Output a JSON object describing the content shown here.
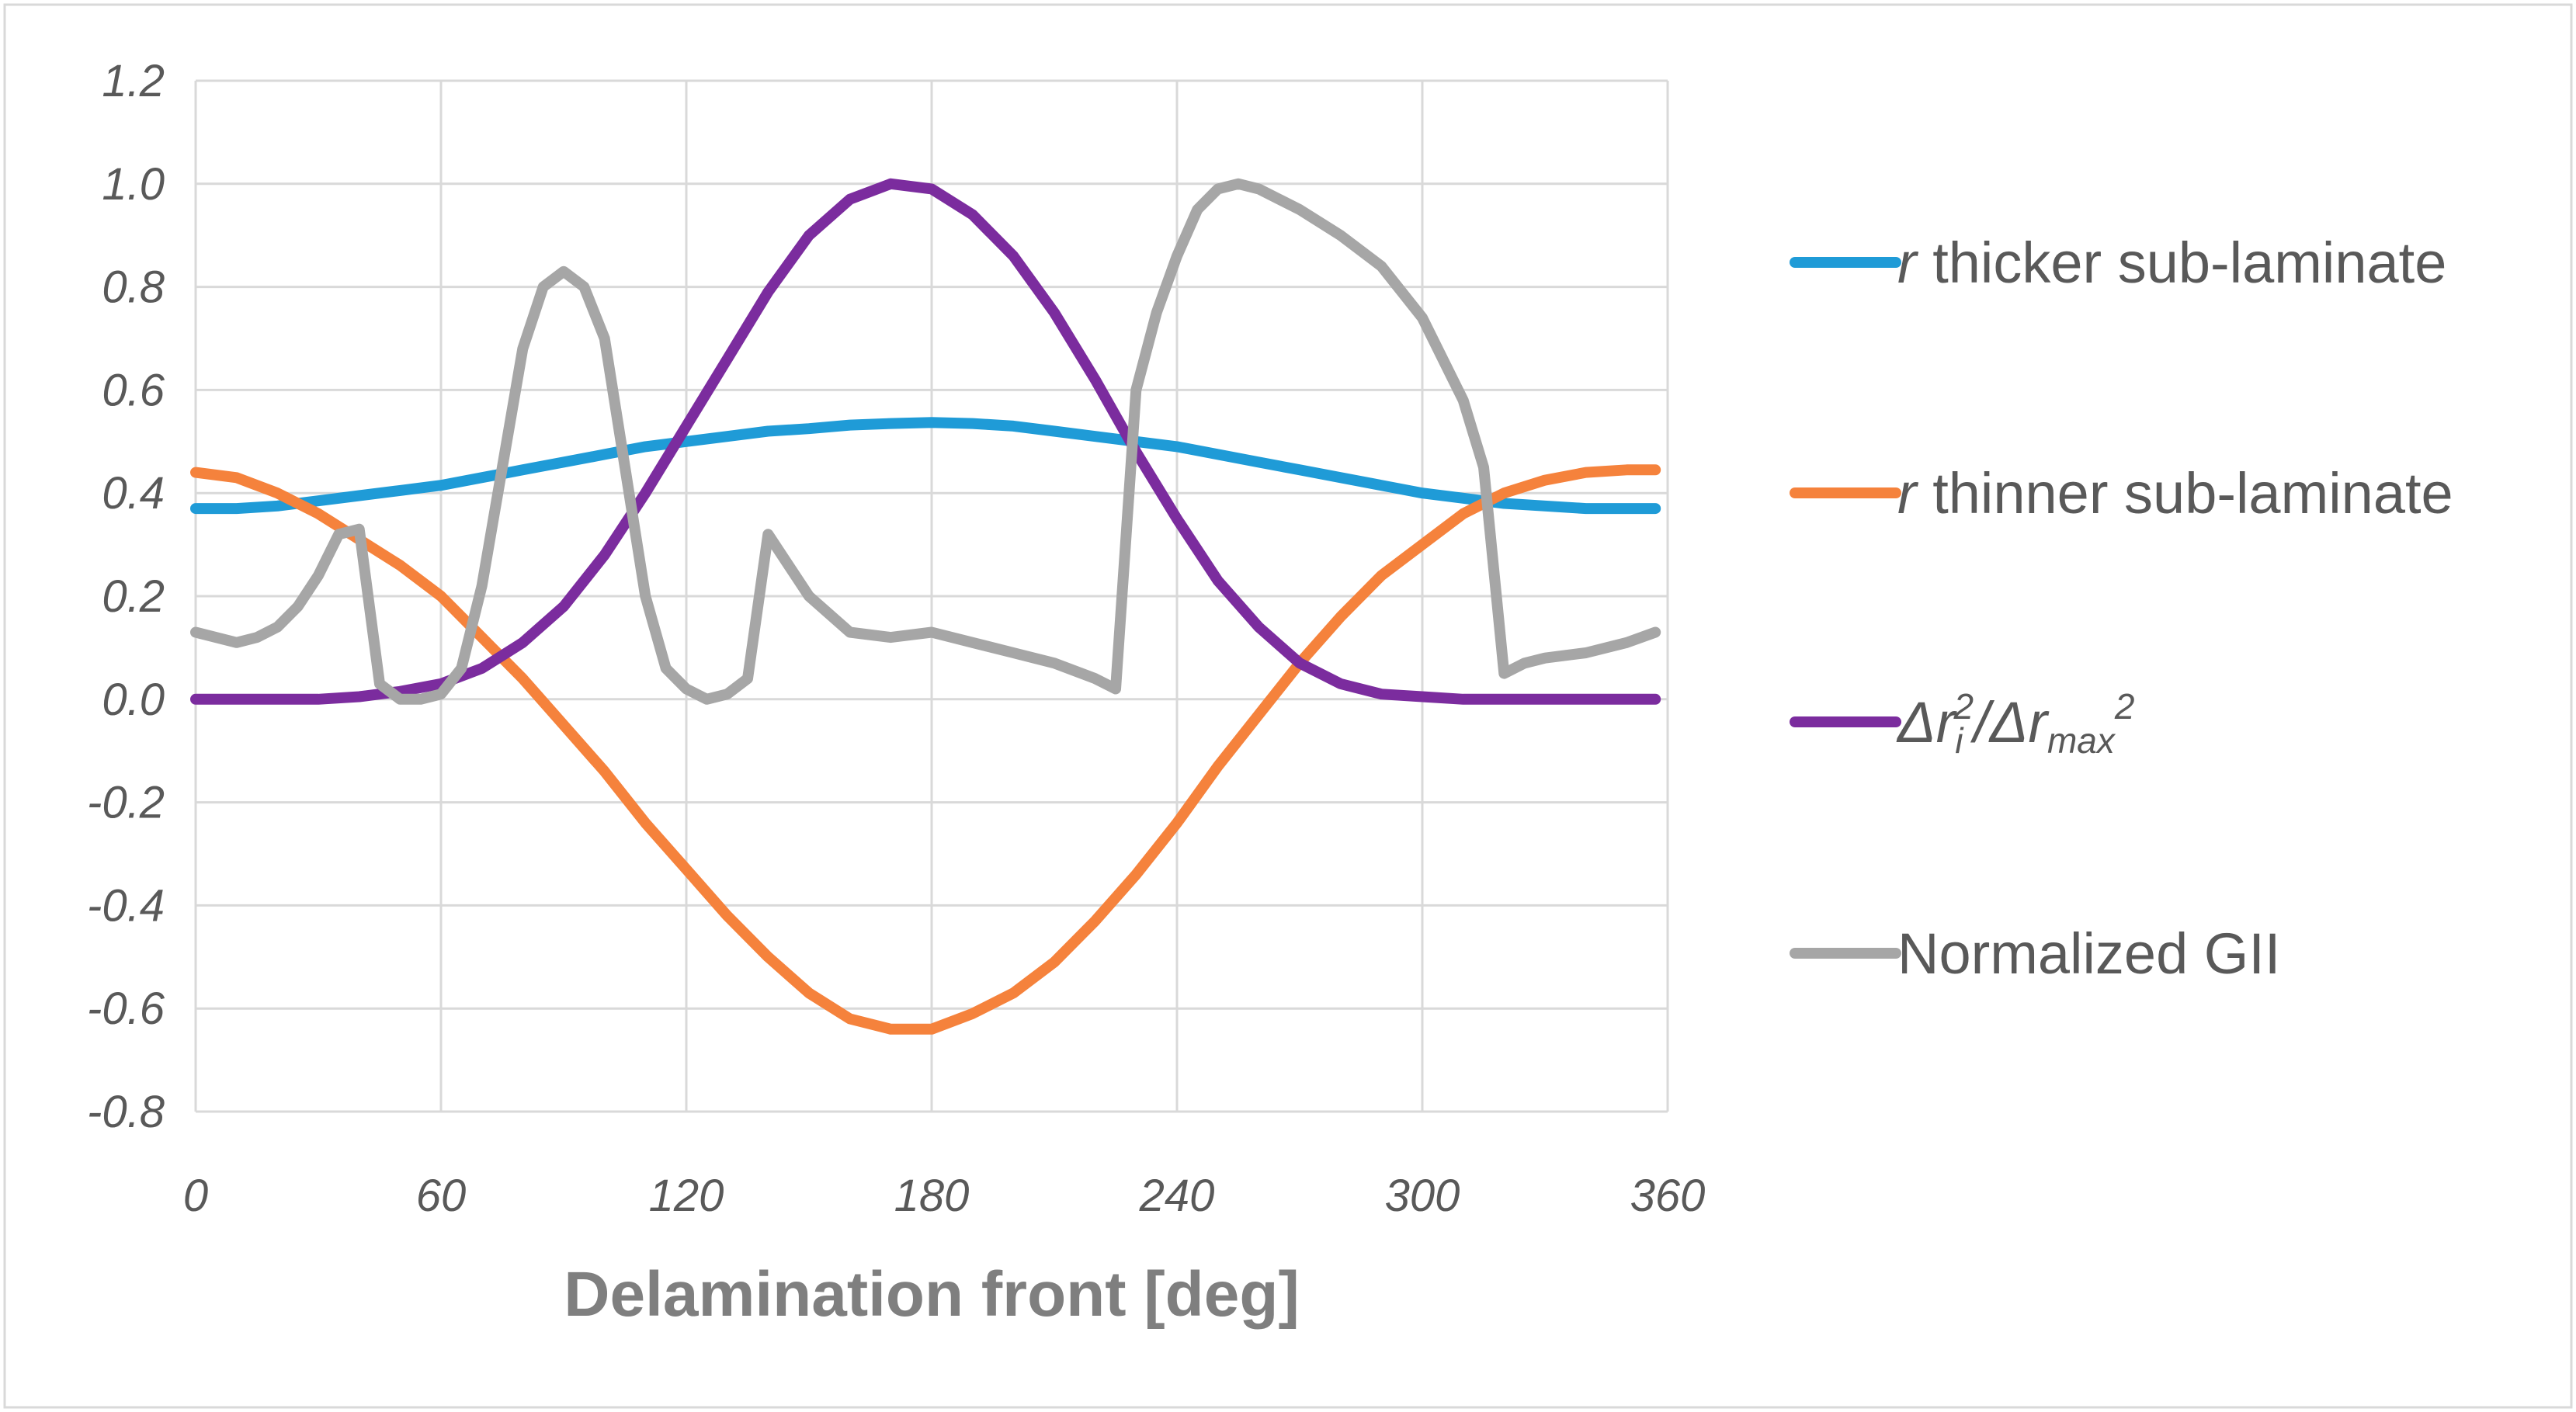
{
  "chart_data": {
    "type": "line",
    "title": "",
    "xlabel": "Delamination front [deg]",
    "ylabel": "",
    "xlim": [
      0,
      360
    ],
    "ylim": [
      -0.8,
      1.2
    ],
    "xticks": [
      0,
      60,
      120,
      180,
      240,
      300,
      360
    ],
    "yticks": [
      -0.8,
      -0.6,
      -0.4,
      -0.2,
      0.0,
      0.2,
      0.4,
      0.6,
      0.8,
      1.0,
      1.2
    ],
    "xtick_labels": [
      "0",
      "60",
      "120",
      "180",
      "240",
      "300",
      "360"
    ],
    "ytick_labels": [
      "-0.8",
      "-0.6",
      "-0.4",
      "-0.2",
      "0.0",
      "0.2",
      "0.4",
      "0.6",
      "0.8",
      "1.0",
      "1.2"
    ],
    "grid": true,
    "legend_position": "right",
    "series": [
      {
        "name": "r thicker sub-laminate",
        "legend": {
          "italic_prefix": "r",
          "text": " thicker sub-laminate"
        },
        "color": "#1f9bd7",
        "x": [
          0,
          10,
          20,
          30,
          40,
          50,
          60,
          70,
          80,
          90,
          100,
          110,
          120,
          130,
          140,
          150,
          160,
          170,
          180,
          190,
          200,
          210,
          220,
          230,
          240,
          250,
          260,
          270,
          280,
          290,
          300,
          310,
          320,
          330,
          340,
          350,
          357
        ],
        "values": [
          0.37,
          0.37,
          0.375,
          0.385,
          0.395,
          0.405,
          0.415,
          0.43,
          0.445,
          0.46,
          0.475,
          0.49,
          0.5,
          0.51,
          0.52,
          0.525,
          0.532,
          0.535,
          0.537,
          0.535,
          0.53,
          0.52,
          0.51,
          0.5,
          0.49,
          0.475,
          0.46,
          0.445,
          0.43,
          0.415,
          0.4,
          0.39,
          0.38,
          0.375,
          0.37,
          0.37,
          0.37
        ]
      },
      {
        "name": "r thinner sub-laminate",
        "legend": {
          "italic_prefix": "r",
          "text": " thinner sub-laminate"
        },
        "color": "#f5823c",
        "x": [
          0,
          10,
          20,
          30,
          40,
          50,
          60,
          70,
          80,
          90,
          100,
          110,
          120,
          130,
          140,
          150,
          160,
          170,
          180,
          190,
          200,
          210,
          220,
          230,
          240,
          250,
          260,
          270,
          280,
          290,
          300,
          310,
          320,
          330,
          340,
          350,
          357
        ],
        "values": [
          0.44,
          0.43,
          0.4,
          0.36,
          0.31,
          0.26,
          0.2,
          0.12,
          0.04,
          -0.05,
          -0.14,
          -0.24,
          -0.33,
          -0.42,
          -0.5,
          -0.57,
          -0.62,
          -0.64,
          -0.64,
          -0.61,
          -0.57,
          -0.51,
          -0.43,
          -0.34,
          -0.24,
          -0.13,
          -0.03,
          0.07,
          0.16,
          0.24,
          0.3,
          0.36,
          0.4,
          0.425,
          0.44,
          0.445,
          0.445
        ]
      },
      {
        "name": "Δri2/Δrmax2",
        "legend": {
          "delta1": "Δr",
          "sub1": "i",
          "sup1": "2",
          "slash": "/",
          "delta2": "Δr",
          "sub2": "max",
          "sup2": "2"
        },
        "color": "#7b2c9e",
        "x": [
          0,
          10,
          20,
          30,
          40,
          50,
          60,
          70,
          80,
          90,
          100,
          110,
          120,
          130,
          140,
          150,
          160,
          170,
          180,
          190,
          200,
          210,
          220,
          230,
          240,
          250,
          260,
          270,
          280,
          290,
          300,
          310,
          320,
          330,
          340,
          350,
          357
        ],
        "values": [
          0.0,
          0.0,
          0.0,
          0.0,
          0.005,
          0.015,
          0.03,
          0.06,
          0.11,
          0.18,
          0.28,
          0.4,
          0.53,
          0.66,
          0.79,
          0.9,
          0.97,
          1.0,
          0.99,
          0.94,
          0.86,
          0.75,
          0.62,
          0.48,
          0.35,
          0.23,
          0.14,
          0.07,
          0.03,
          0.01,
          0.005,
          0.0,
          0.0,
          0.0,
          0.0,
          0.0,
          0.0
        ]
      },
      {
        "name": "Normalized GII",
        "legend": {
          "text": "Normalized GII"
        },
        "color": "#a6a6a6",
        "x": [
          0,
          10,
          15,
          20,
          25,
          30,
          35,
          40,
          45,
          50,
          55,
          60,
          65,
          70,
          75,
          80,
          85,
          90,
          95,
          100,
          105,
          110,
          115,
          120,
          125,
          130,
          135,
          140,
          145,
          150,
          160,
          170,
          180,
          190,
          200,
          210,
          220,
          225,
          230,
          235,
          240,
          245,
          250,
          255,
          260,
          265,
          270,
          280,
          290,
          300,
          310,
          315,
          320,
          325,
          330,
          340,
          350,
          357
        ],
        "values": [
          0.13,
          0.11,
          0.12,
          0.14,
          0.18,
          0.24,
          0.32,
          0.33,
          0.03,
          0.0,
          0.0,
          0.01,
          0.06,
          0.22,
          0.45,
          0.68,
          0.8,
          0.83,
          0.8,
          0.7,
          0.45,
          0.2,
          0.06,
          0.02,
          0.0,
          0.01,
          0.04,
          0.32,
          0.26,
          0.2,
          0.13,
          0.12,
          0.13,
          0.11,
          0.09,
          0.07,
          0.04,
          0.02,
          0.6,
          0.75,
          0.86,
          0.95,
          0.99,
          1.0,
          0.99,
          0.97,
          0.95,
          0.9,
          0.84,
          0.74,
          0.58,
          0.45,
          0.05,
          0.07,
          0.08,
          0.09,
          0.11,
          0.13
        ]
      }
    ]
  }
}
